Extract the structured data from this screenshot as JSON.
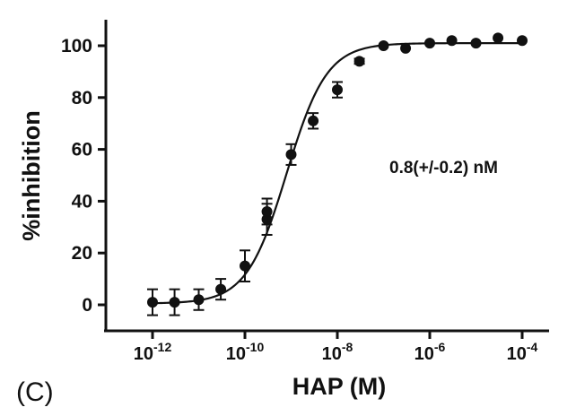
{
  "chart_data": {
    "type": "scatter",
    "title": "",
    "xlabel": "HAP (M)",
    "ylabel": "%inhibition",
    "annotation": "0.8(+/-0.2) nM",
    "panel_label": "(C)",
    "x_scale": "log",
    "xlim": [
      1e-13,
      0.0001
    ],
    "ylim": [
      -8,
      110
    ],
    "x_ticks": [
      {
        "value": 1e-12,
        "base": "10",
        "exp": "-12"
      },
      {
        "value": 1e-10,
        "base": "10",
        "exp": "-10"
      },
      {
        "value": 1e-08,
        "base": "10",
        "exp": "-8"
      },
      {
        "value": 1e-06,
        "base": "10",
        "exp": "-6"
      },
      {
        "value": 0.0001,
        "base": "10",
        "exp": "-4"
      }
    ],
    "y_ticks": [
      0,
      20,
      40,
      60,
      80,
      100
    ],
    "fit": {
      "model": "four-parameter logistic",
      "bottom": 0.5,
      "top": 101,
      "ic50": 8e-10,
      "hill": 1.0
    },
    "series": [
      {
        "points": [
          {
            "x": 1e-12,
            "y": 1,
            "err": 5
          },
          {
            "x": 3e-12,
            "y": 1,
            "err": 5
          },
          {
            "x": 1e-11,
            "y": 2,
            "err": 4
          },
          {
            "x": 3e-11,
            "y": 6,
            "err": 4
          },
          {
            "x": 1e-10,
            "y": 15,
            "err": 6
          },
          {
            "x": 3e-10,
            "y": 33,
            "err": 6
          },
          {
            "x": 3e-10,
            "y": 36,
            "err": 5
          },
          {
            "x": 1e-09,
            "y": 58,
            "err": 4
          },
          {
            "x": 3e-09,
            "y": 71,
            "err": 3
          },
          {
            "x": 1e-08,
            "y": 83,
            "err": 3
          },
          {
            "x": 3e-08,
            "y": 94,
            "err": 1
          },
          {
            "x": 1e-07,
            "y": 100,
            "err": 0
          },
          {
            "x": 3e-07,
            "y": 99,
            "err": 0
          },
          {
            "x": 1e-06,
            "y": 101,
            "err": 0
          },
          {
            "x": 3e-06,
            "y": 102,
            "err": 0
          },
          {
            "x": 1e-05,
            "y": 101,
            "err": 0
          },
          {
            "x": 3e-05,
            "y": 103,
            "err": 0
          },
          {
            "x": 0.0001,
            "y": 102,
            "err": 0
          }
        ]
      }
    ]
  }
}
